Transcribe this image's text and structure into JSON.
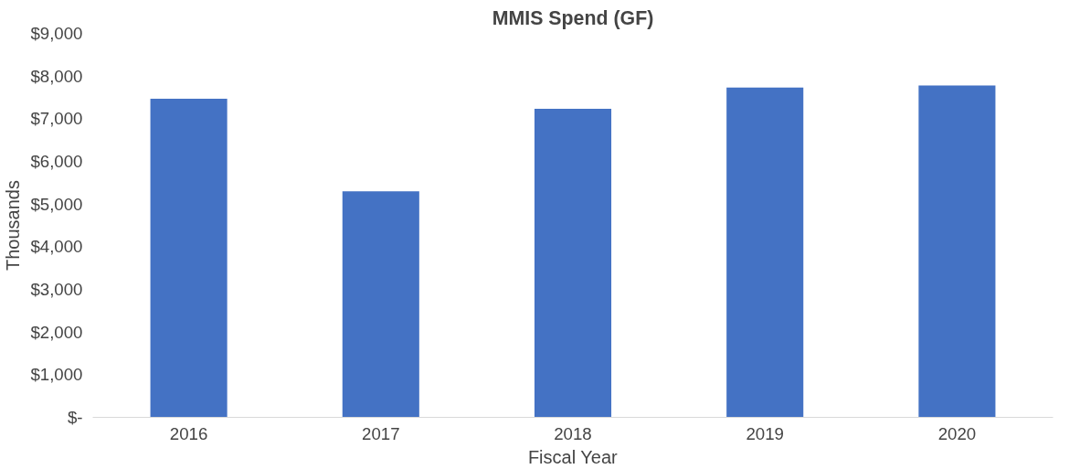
{
  "chart_data": {
    "type": "bar",
    "title": "MMIS Spend (GF)",
    "xlabel": "Fiscal Year",
    "ylabel": "Thousands",
    "categories": [
      "2016",
      "2017",
      "2018",
      "2019",
      "2020"
    ],
    "values": [
      7470,
      5300,
      7230,
      7730,
      7780
    ],
    "color": "#4472c4",
    "ylim": [
      0,
      9000
    ],
    "yticks": [
      {
        "value": 0,
        "label": "$-"
      },
      {
        "value": 1000,
        "label": "$1,000"
      },
      {
        "value": 2000,
        "label": "$2,000"
      },
      {
        "value": 3000,
        "label": "$3,000"
      },
      {
        "value": 4000,
        "label": "$4,000"
      },
      {
        "value": 5000,
        "label": "$5,000"
      },
      {
        "value": 6000,
        "label": "$6,000"
      },
      {
        "value": 7000,
        "label": "$7,000"
      },
      {
        "value": 8000,
        "label": "$8,000"
      },
      {
        "value": 9000,
        "label": "$9,000"
      }
    ],
    "grid": false
  }
}
